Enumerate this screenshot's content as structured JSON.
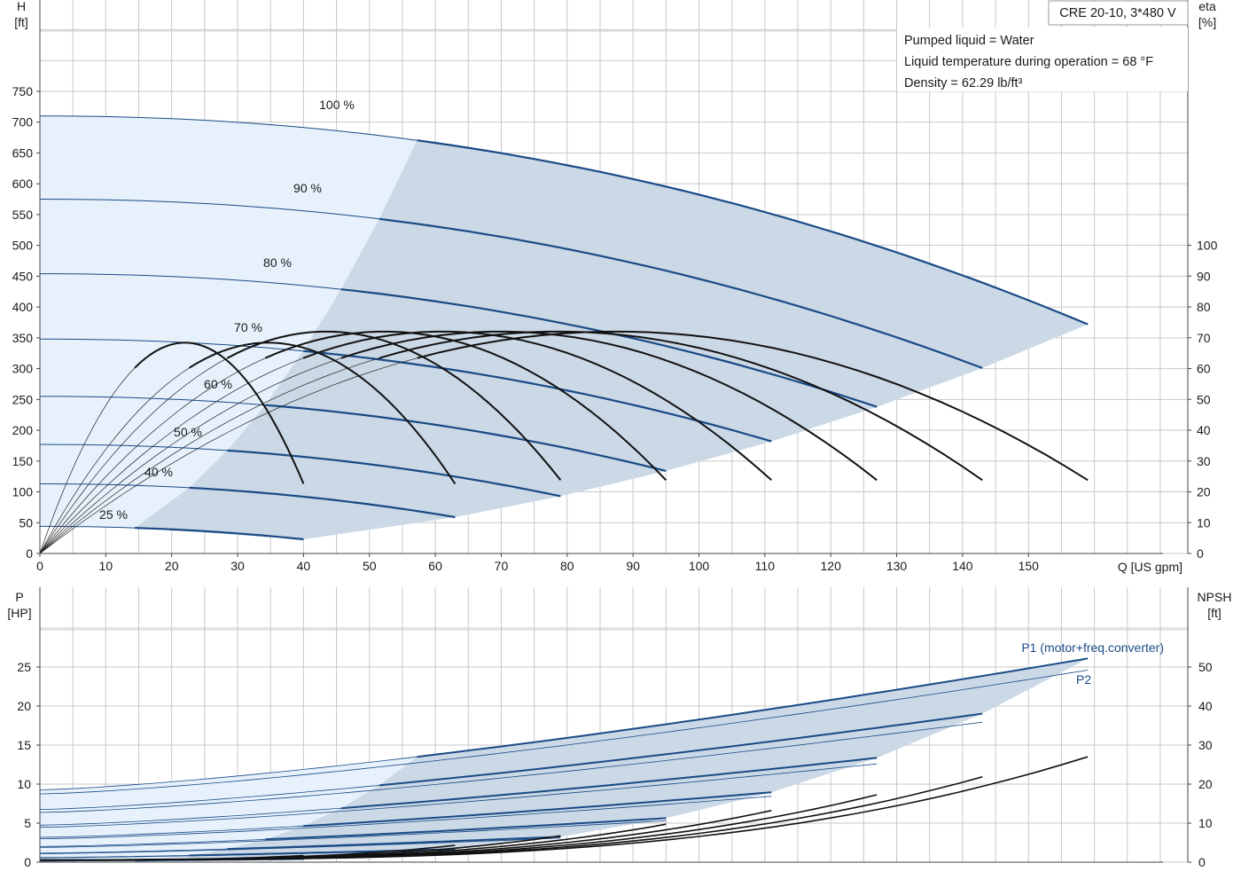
{
  "header": {
    "model": "CRE 20-10, 3*480 V",
    "info": [
      "Pumped liquid = Water",
      "Liquid temperature during operation = 68 °F",
      "Density = 62.29 lb/ft³"
    ]
  },
  "top_axes": {
    "left_label": "H",
    "left_unit": "[ft]",
    "right_label": "eta",
    "right_unit": "[%]",
    "x_label": "Q [US gpm]"
  },
  "bottom_axes": {
    "left_label": "P",
    "left_unit": "[HP]",
    "right_label": "NPSH",
    "right_unit": "[ft]"
  },
  "colors": {
    "curve_blue": "#1a4a86",
    "area_light": "#e6f1fb",
    "area_dark": "#cbd8e5",
    "grid": "#c8c8c8"
  },
  "chart_data": [
    {
      "type": "line",
      "name": "head",
      "x_label": "Q [US gpm]",
      "y_label": "H [ft]",
      "xlim": [
        0,
        160
      ],
      "ylim": [
        0,
        750
      ],
      "x_ticks": [
        0,
        10,
        20,
        30,
        40,
        50,
        60,
        70,
        80,
        90,
        100,
        110,
        120,
        130,
        140,
        150
      ],
      "y_ticks": [
        0,
        50,
        100,
        150,
        200,
        250,
        300,
        350,
        400,
        450,
        500,
        550,
        600,
        650,
        700,
        750
      ],
      "speed_curves": [
        {
          "label": "100 %",
          "speed": 1.0,
          "h0": 710,
          "qmax": 159,
          "hend": 372
        },
        {
          "label": "90 %",
          "speed": 0.9,
          "h0": 575,
          "qmax": 143,
          "hend": 301
        },
        {
          "label": "80 %",
          "speed": 0.8,
          "h0": 454,
          "qmax": 127,
          "hend": 238
        },
        {
          "label": "70 %",
          "speed": 0.7,
          "h0": 348,
          "qmax": 111,
          "hend": 182
        },
        {
          "label": "60 %",
          "speed": 0.6,
          "h0": 255,
          "qmax": 95,
          "hend": 134
        },
        {
          "label": "50 %",
          "speed": 0.5,
          "h0": 177,
          "qmax": 79,
          "hend": 93
        },
        {
          "label": "40 %",
          "speed": 0.4,
          "h0": 113,
          "qmax": 63,
          "hend": 59
        },
        {
          "label": "25 %",
          "speed": 0.25,
          "h0": 44,
          "qmax": 40,
          "hend": 23
        }
      ],
      "operating_area_min_q_fraction": 0.36,
      "efficiency": {
        "y_label": "eta [%]",
        "ylim": [
          0,
          100
        ],
        "y_ticks": [
          0,
          10,
          20,
          30,
          40,
          50,
          60,
          70,
          80,
          90,
          100
        ],
        "peak_percent": 72
      }
    },
    {
      "type": "line",
      "name": "power_npsh",
      "y_label": "P [HP]",
      "ylim": [
        0,
        25
      ],
      "y_ticks": [
        0,
        5,
        10,
        15,
        20,
        25
      ],
      "series": [
        {
          "name": "P1 (motor+freq.converter)",
          "at_100_percent_qmax": 26.1
        },
        {
          "name": "P2",
          "at_100_percent_qmax": 24.6
        }
      ],
      "npsh": {
        "y_label": "NPSH [ft]",
        "ylim": [
          0,
          50
        ],
        "y_ticks": [
          0,
          10,
          20,
          30,
          40,
          50
        ],
        "at_100_percent_qmax": 27
      }
    }
  ]
}
